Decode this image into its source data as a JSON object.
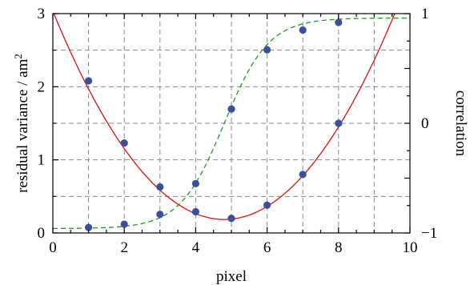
{
  "chart_data": {
    "type": "scatter",
    "xlabel": "pixel",
    "ylabel": "residual variance / am",
    "ylabel_superscript": "2",
    "y2label": "correlation",
    "xlim": [
      0,
      10
    ],
    "ylim": [
      0,
      3
    ],
    "y2lim": [
      -1,
      1
    ],
    "x_ticks": [
      "0",
      "2",
      "4",
      "6",
      "8",
      "10"
    ],
    "y_ticks": [
      "0",
      "1",
      "2",
      "3"
    ],
    "y2_ticks": [
      "−1",
      "0",
      "1"
    ],
    "grid": true,
    "series": [
      {
        "axis": "left",
        "color": "#3c4f9b",
        "x": [
          1,
          2,
          3,
          4,
          5,
          6,
          7,
          8
        ],
        "values": [
          2.08,
          1.23,
          0.63,
          0.29,
          0.2,
          0.38,
          0.8,
          1.5
        ]
      },
      {
        "axis": "right",
        "color": "#3c4f9b",
        "x": [
          1,
          2,
          3,
          4,
          5,
          6,
          7,
          8
        ],
        "values": [
          -0.95,
          -0.92,
          -0.83,
          -0.55,
          0.13,
          0.67,
          0.85,
          0.92
        ]
      }
    ],
    "curves": [
      {
        "axis": "left",
        "style": "solid",
        "color": "#e01010",
        "shape": "parabola",
        "vertex_x": 4.8,
        "vertex_y": 0.185,
        "coef": 0.1236
      },
      {
        "axis": "right",
        "style": "dashed",
        "color": "#17a017",
        "shape": "sigmoid",
        "min": -0.96,
        "max": 0.96,
        "center": 4.8,
        "scale": 0.62
      }
    ]
  }
}
